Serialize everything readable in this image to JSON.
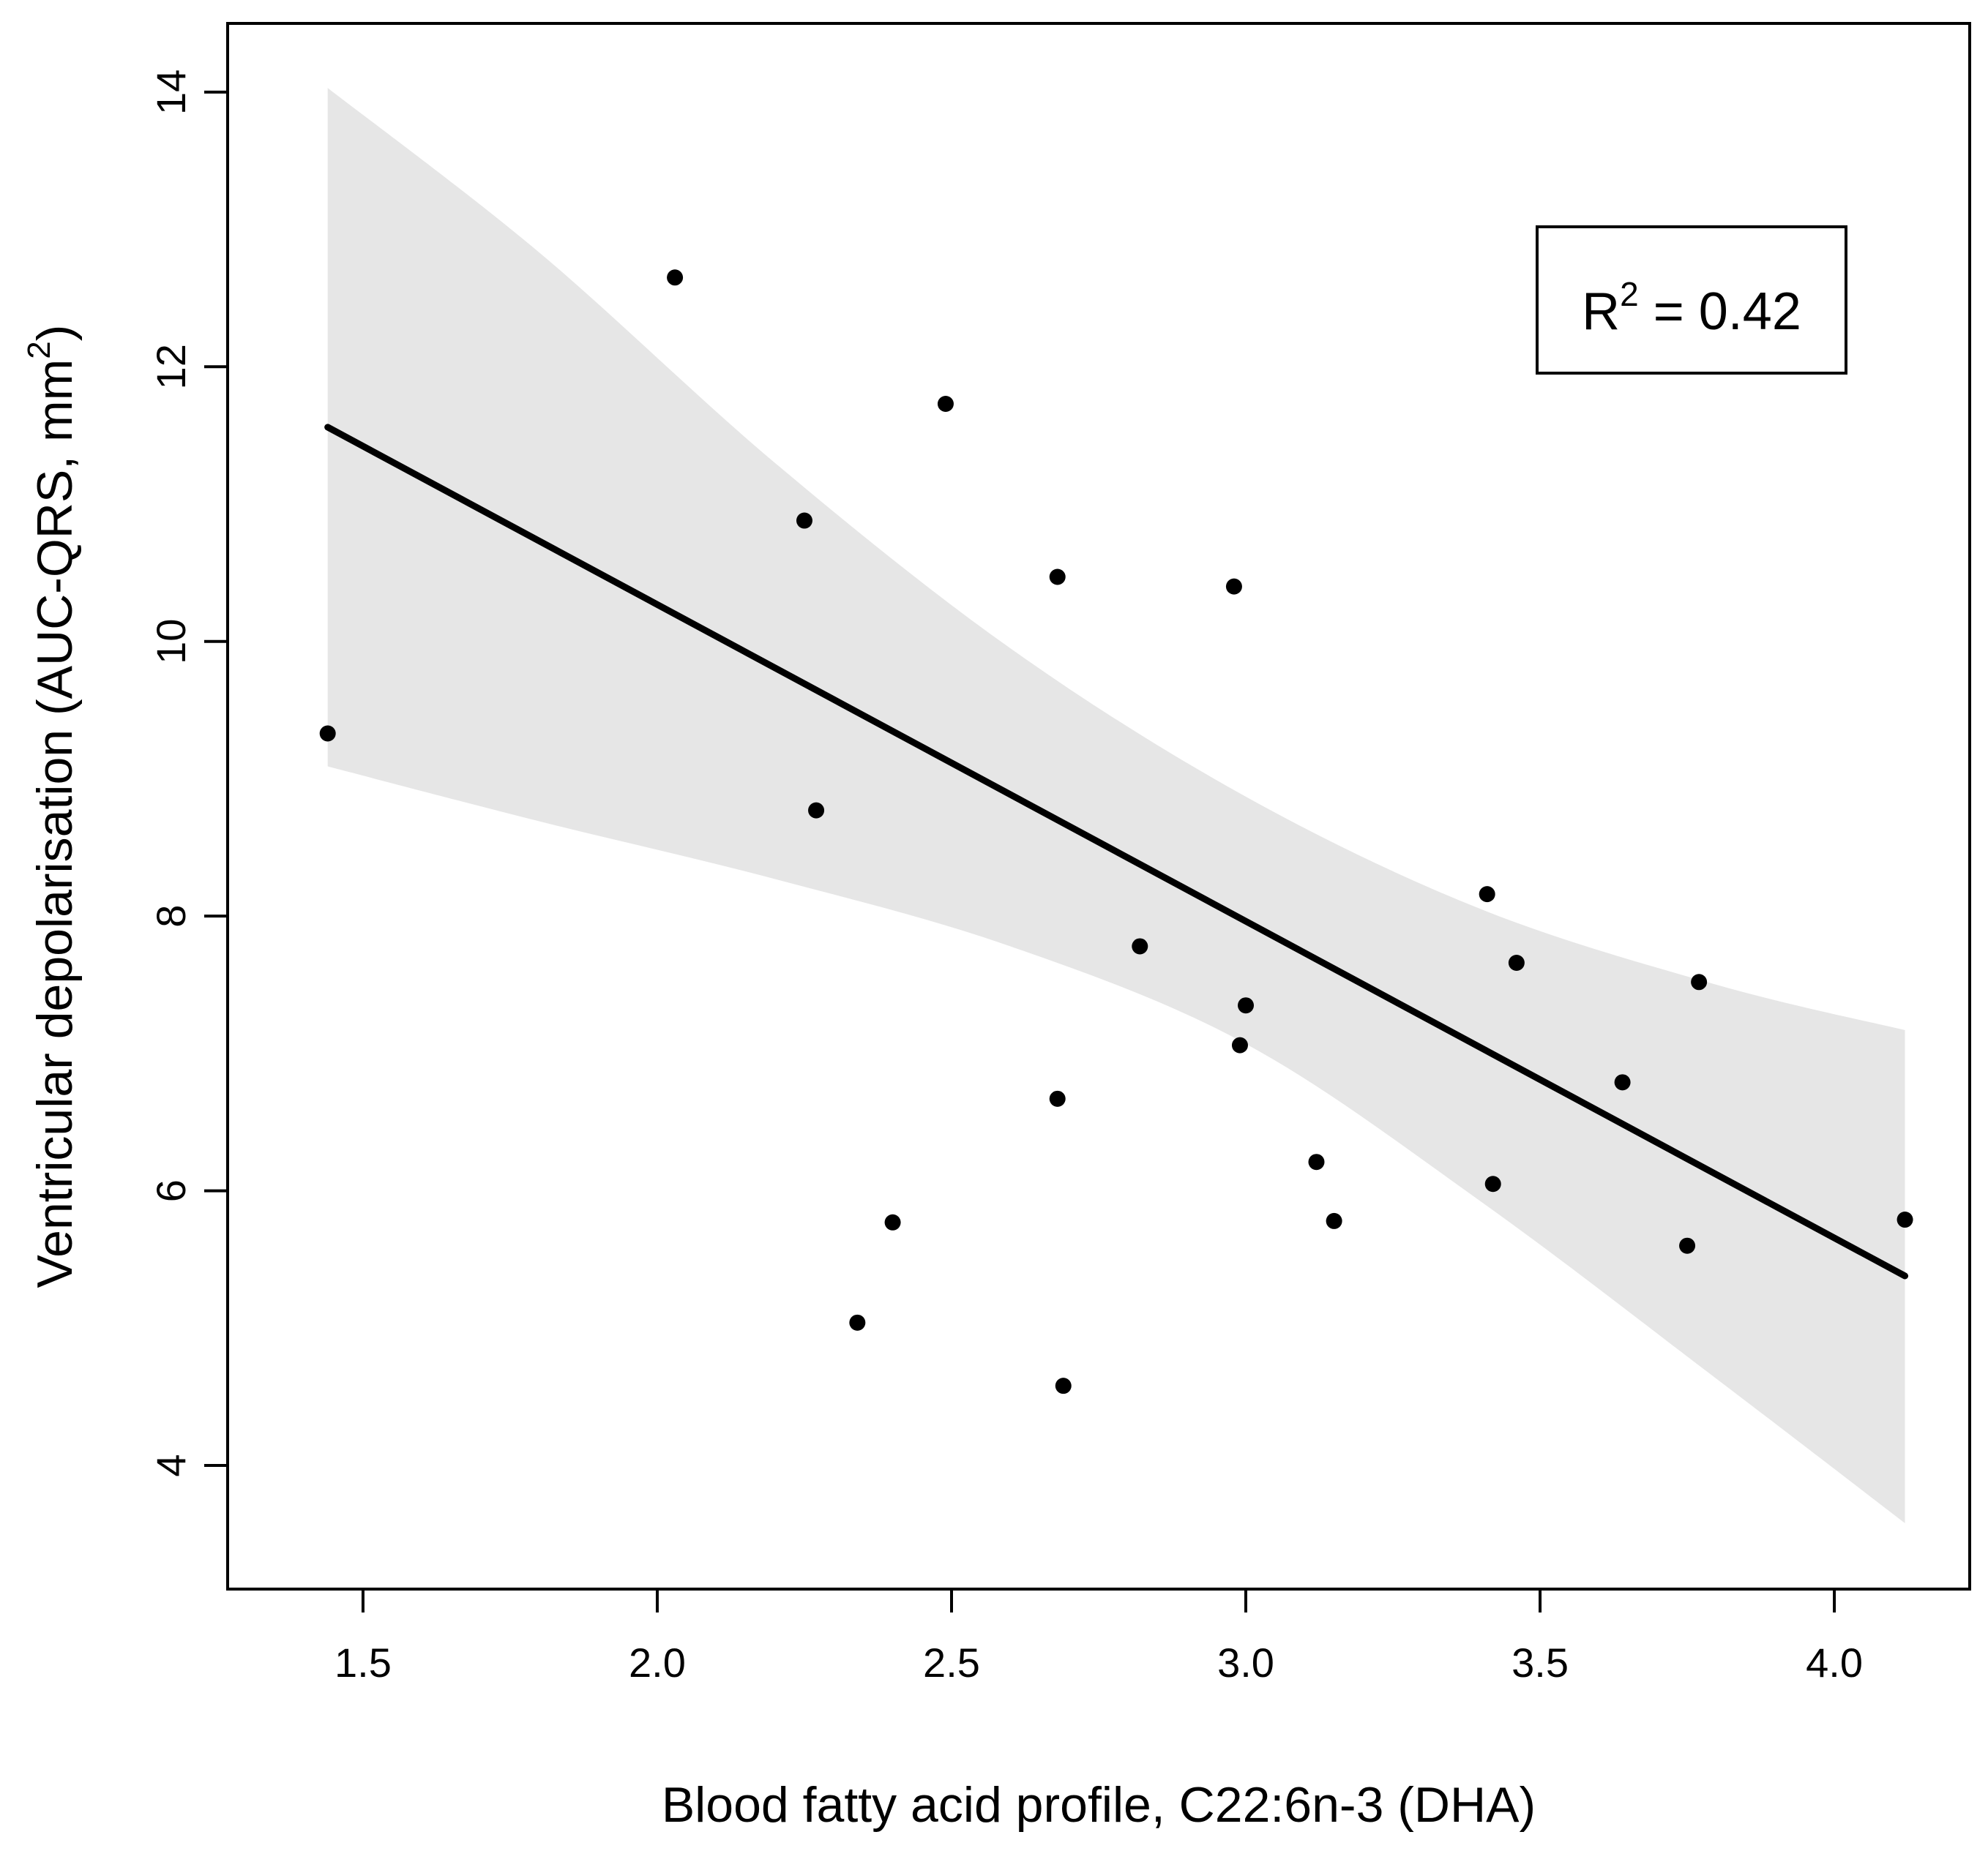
{
  "chart_data": {
    "type": "scatter",
    "title": "",
    "xlabel": "Blood fatty acid profile, C22:6n-3 (DHA)",
    "ylabel_main": "Ventricular depolarisation (AUC-QRS, mm",
    "ylabel_sup": "2",
    "ylabel_close": ")",
    "xlim": [
      1.27,
      4.23
    ],
    "ylim": [
      3.1,
      14.5
    ],
    "x_ticks": [
      1.5,
      2.0,
      2.5,
      3.0,
      3.5,
      4.0
    ],
    "x_tick_labels": [
      "1.5",
      "2.0",
      "2.5",
      "3.0",
      "3.5",
      "4.0"
    ],
    "y_ticks": [
      4,
      6,
      8,
      10,
      12,
      14
    ],
    "y_tick_labels": [
      "4",
      "6",
      "8",
      "10",
      "12",
      "14"
    ],
    "points": [
      {
        "x": 1.44,
        "y": 9.33
      },
      {
        "x": 2.03,
        "y": 12.65
      },
      {
        "x": 2.25,
        "y": 10.88
      },
      {
        "x": 2.27,
        "y": 8.77
      },
      {
        "x": 2.34,
        "y": 5.04
      },
      {
        "x": 2.4,
        "y": 5.77
      },
      {
        "x": 2.49,
        "y": 11.73
      },
      {
        "x": 2.68,
        "y": 10.47
      },
      {
        "x": 2.68,
        "y": 6.67
      },
      {
        "x": 2.69,
        "y": 4.58
      },
      {
        "x": 2.82,
        "y": 7.78
      },
      {
        "x": 2.98,
        "y": 10.4
      },
      {
        "x": 2.99,
        "y": 7.06
      },
      {
        "x": 3.0,
        "y": 7.35
      },
      {
        "x": 3.12,
        "y": 6.21
      },
      {
        "x": 3.15,
        "y": 5.78
      },
      {
        "x": 3.41,
        "y": 8.16
      },
      {
        "x": 3.42,
        "y": 6.05
      },
      {
        "x": 3.46,
        "y": 7.66
      },
      {
        "x": 3.64,
        "y": 6.79
      },
      {
        "x": 3.75,
        "y": 5.6
      },
      {
        "x": 3.77,
        "y": 7.52
      },
      {
        "x": 4.12,
        "y": 5.79
      }
    ],
    "regression_line": {
      "x": [
        1.44,
        4.12
      ],
      "y": [
        11.56,
        5.38
      ]
    },
    "confidence_band": {
      "x": [
        1.44,
        1.8,
        2.2,
        2.6,
        3.0,
        3.4,
        3.8,
        4.12
      ],
      "upper": [
        14.03,
        12.83,
        11.3,
        9.95,
        8.87,
        8.05,
        7.5,
        7.17
      ],
      "lower": [
        9.09,
        8.69,
        8.27,
        7.78,
        7.07,
        5.92,
        4.63,
        3.58
      ]
    },
    "annotation": {
      "label_main": "R",
      "label_sup": "2",
      "label_rest": " = 0.42"
    },
    "colors": {
      "band": "#e6e6e6",
      "line": "#000000",
      "points": "#000000",
      "axes": "#000000"
    }
  }
}
